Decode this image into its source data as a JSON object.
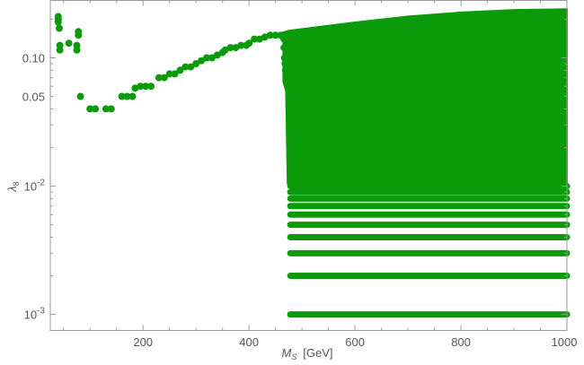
{
  "chart_data": {
    "type": "scatter",
    "xlabel": "M_S [GeV]",
    "xlabel_main": "M",
    "xlabel_sub": "S",
    "xlabel_unit": "[GeV]",
    "ylabel": "λ_8",
    "ylabel_main": "λ",
    "ylabel_sub": "8",
    "xlim": [
      25,
      1000
    ],
    "ylim": [
      0.00075,
      0.28
    ],
    "yscale": "log",
    "grid": false,
    "x_ticks": [
      {
        "value": 200,
        "label": "200"
      },
      {
        "value": 400,
        "label": "400"
      },
      {
        "value": 600,
        "label": "600"
      },
      {
        "value": 800,
        "label": "800"
      },
      {
        "value": 1000,
        "label": "1000"
      }
    ],
    "y_ticks": [
      {
        "value": 0.001,
        "label": "10",
        "exp": "-3"
      },
      {
        "value": 0.01,
        "label": "10",
        "exp": "-2"
      },
      {
        "value": 0.05,
        "label": "0.05"
      },
      {
        "value": 0.1,
        "label": "0.10"
      }
    ],
    "color": "#0a9a0a",
    "series": [
      {
        "points": [
          [
            40,
            0.21
          ],
          [
            40,
            0.2
          ],
          [
            40,
            0.19
          ],
          [
            42,
            0.17
          ],
          [
            43,
            0.125
          ],
          [
            43,
            0.115
          ],
          [
            60,
            0.13
          ],
          [
            75,
            0.125
          ],
          [
            75,
            0.115
          ],
          [
            78,
            0.16
          ],
          [
            78,
            0.15
          ],
          [
            82,
            0.05
          ],
          [
            100,
            0.04
          ],
          [
            110,
            0.04
          ],
          [
            130,
            0.04
          ],
          [
            140,
            0.04
          ],
          [
            160,
            0.05
          ],
          [
            170,
            0.05
          ],
          [
            180,
            0.05
          ],
          [
            185,
            0.058
          ],
          [
            195,
            0.06
          ],
          [
            205,
            0.06
          ],
          [
            215,
            0.06
          ],
          [
            230,
            0.07
          ],
          [
            240,
            0.07
          ],
          [
            250,
            0.075
          ],
          [
            260,
            0.075
          ],
          [
            270,
            0.08
          ],
          [
            280,
            0.085
          ],
          [
            290,
            0.085
          ],
          [
            300,
            0.09
          ],
          [
            310,
            0.095
          ],
          [
            320,
            0.1
          ],
          [
            330,
            0.1
          ],
          [
            340,
            0.105
          ],
          [
            350,
            0.11
          ],
          [
            355,
            0.115
          ],
          [
            365,
            0.12
          ],
          [
            375,
            0.12
          ],
          [
            385,
            0.125
          ],
          [
            395,
            0.125
          ],
          [
            400,
            0.13
          ],
          [
            410,
            0.14
          ],
          [
            420,
            0.14
          ],
          [
            430,
            0.145
          ],
          [
            440,
            0.15
          ],
          [
            450,
            0.15
          ],
          [
            460,
            0.15
          ],
          [
            466,
            0.15
          ],
          [
            466,
            0.14
          ],
          [
            466,
            0.12
          ],
          [
            467,
            0.1
          ],
          [
            468,
            0.09
          ],
          [
            469,
            0.08
          ],
          [
            470,
            0.07
          ]
        ]
      }
    ],
    "dense_region": {
      "x_range": [
        475,
        1000
      ],
      "top_boundary": [
        [
          475,
          0.155
        ],
        [
          600,
          0.18
        ],
        [
          700,
          0.2
        ],
        [
          800,
          0.215
        ],
        [
          900,
          0.225
        ],
        [
          1000,
          0.228
        ]
      ],
      "lower_edge": 0.011,
      "step_edge": [
        [
          470,
          0.065
        ],
        [
          475,
          0.055
        ],
        [
          478,
          0.011
        ]
      ]
    },
    "bands": [
      {
        "value": 0.001,
        "x_range": [
          478,
          1000
        ]
      },
      {
        "value": 0.002,
        "x_range": [
          478,
          1000
        ]
      },
      {
        "value": 0.003,
        "x_range": [
          478,
          1000
        ]
      },
      {
        "value": 0.004,
        "x_range": [
          478,
          1000
        ]
      },
      {
        "value": 0.005,
        "x_range": [
          478,
          1000
        ]
      },
      {
        "value": 0.006,
        "x_range": [
          478,
          1000
        ]
      },
      {
        "value": 0.007,
        "x_range": [
          478,
          1000
        ]
      },
      {
        "value": 0.008,
        "x_range": [
          478,
          1000
        ]
      },
      {
        "value": 0.009,
        "x_range": [
          478,
          1000
        ]
      },
      {
        "value": 0.01,
        "x_range": [
          478,
          1000
        ]
      }
    ]
  }
}
